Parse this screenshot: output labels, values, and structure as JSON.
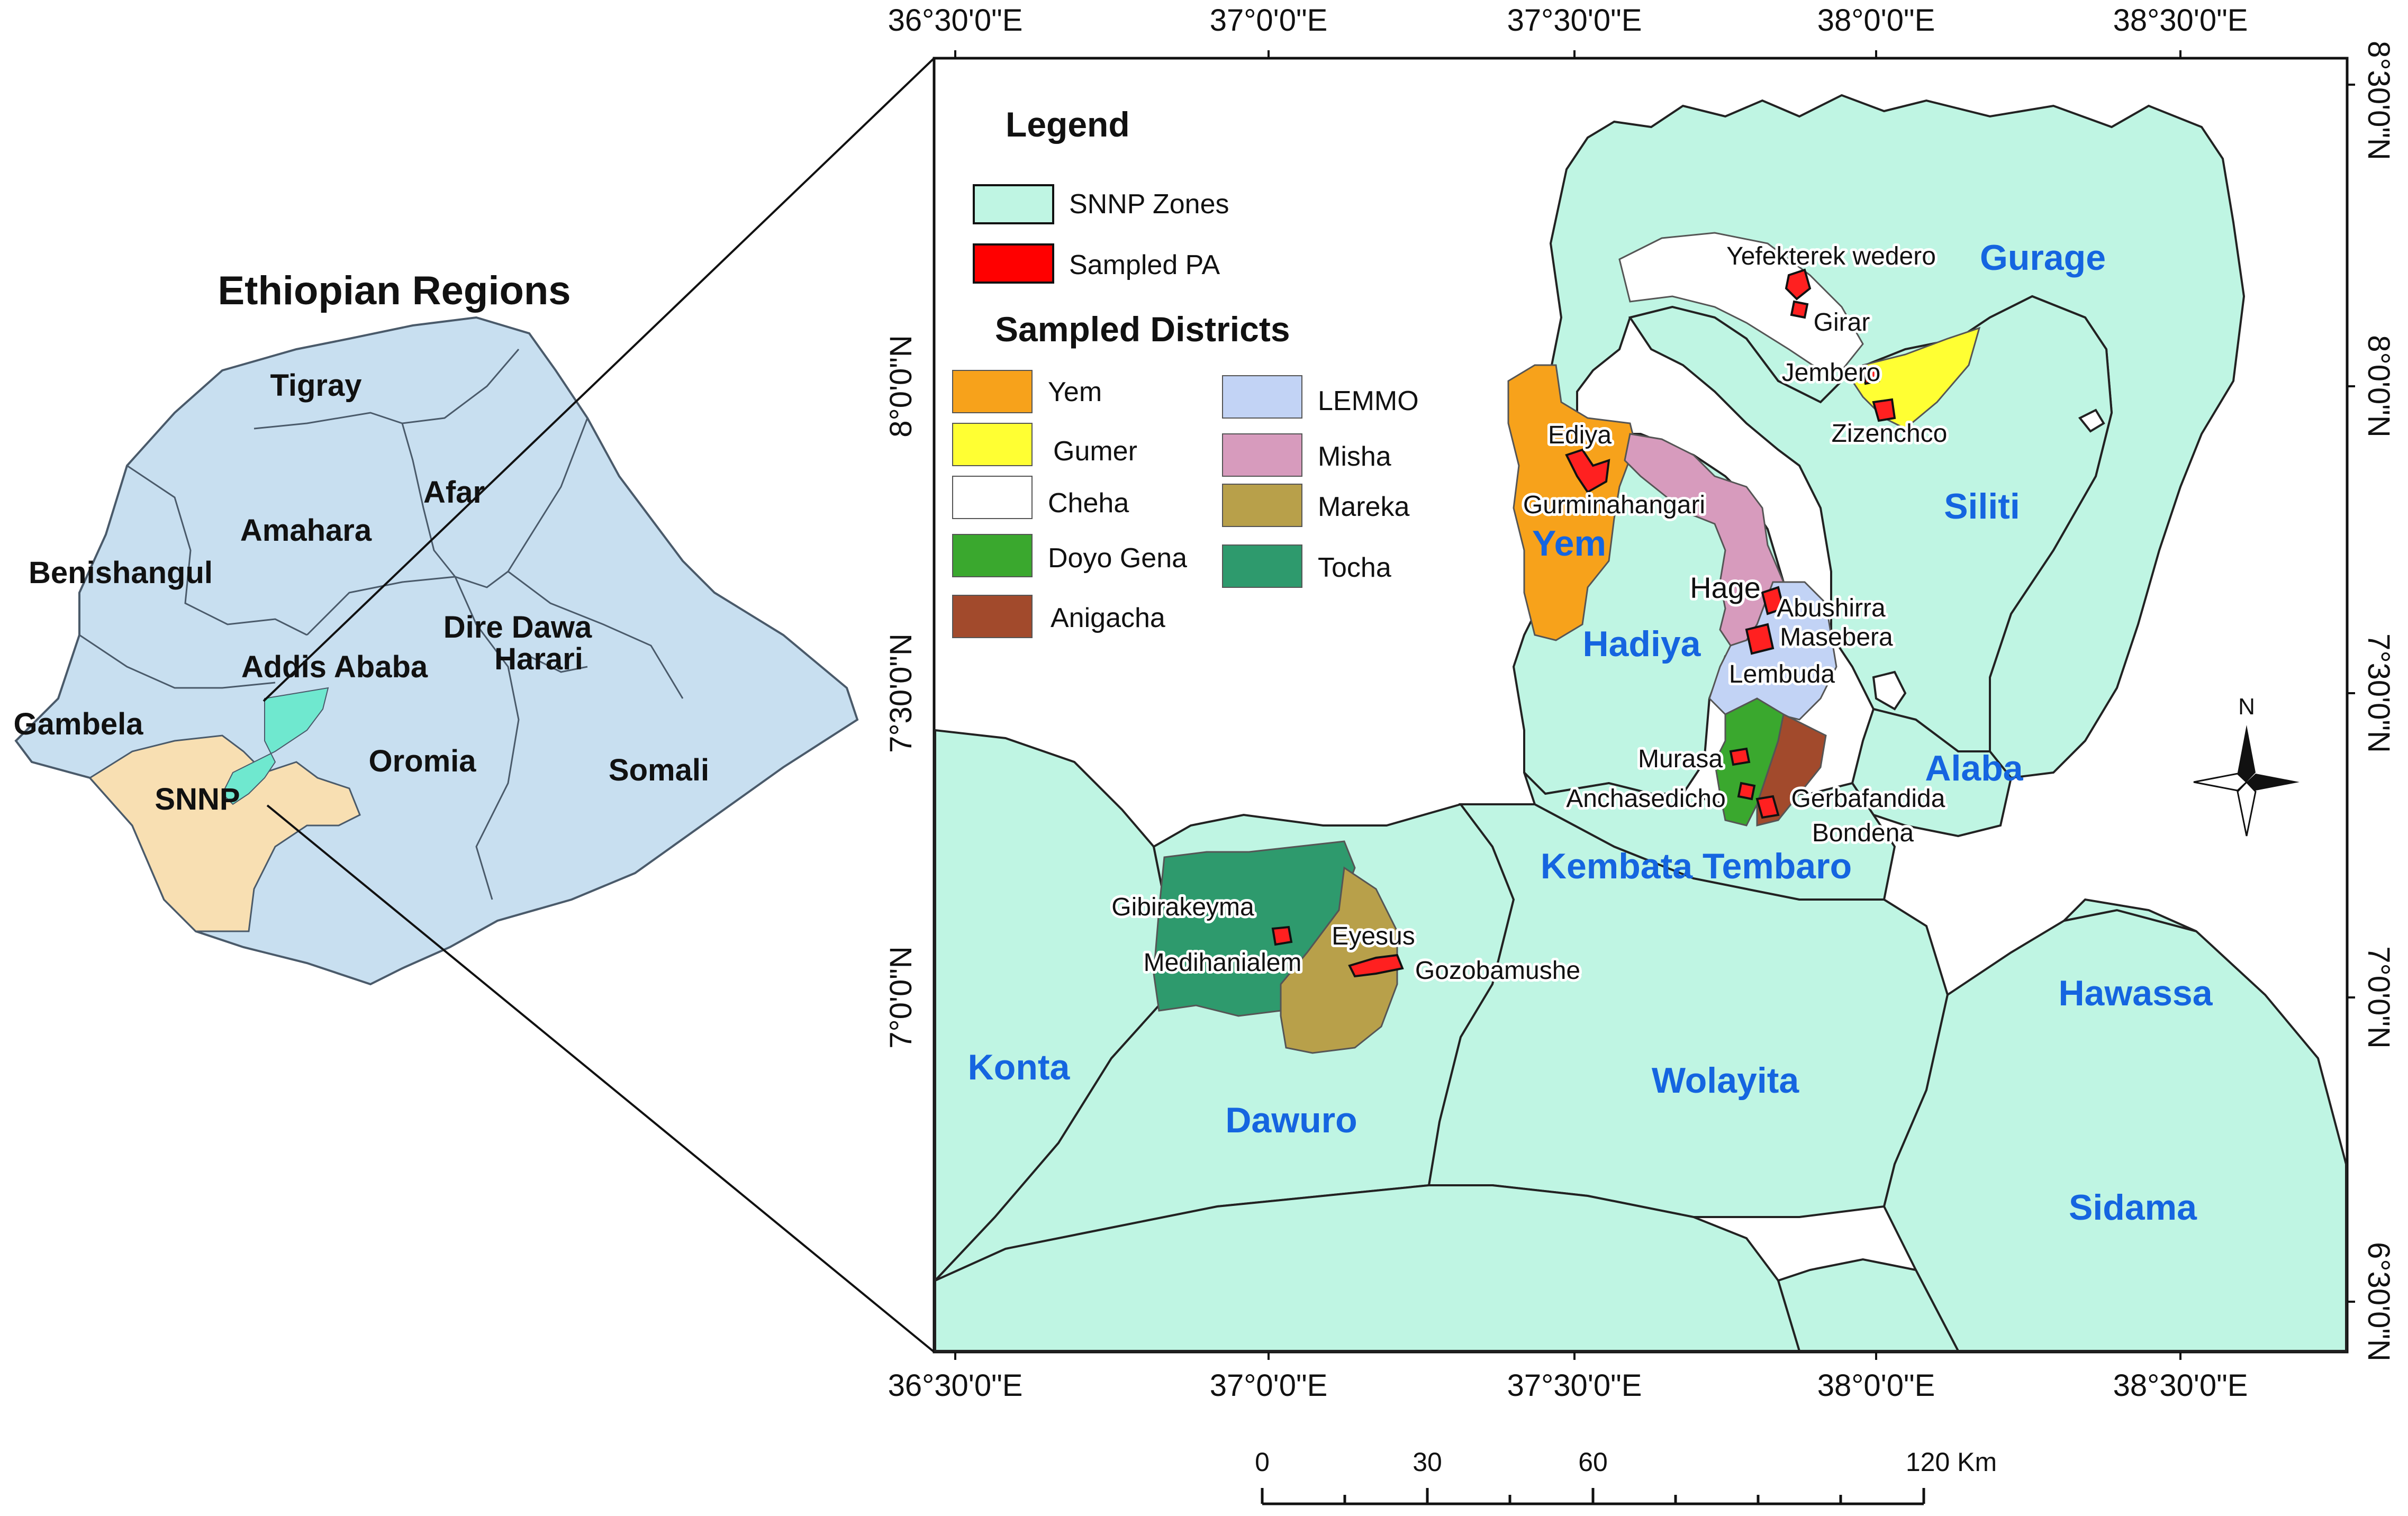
{
  "inset": {
    "title": "Ethiopian Regions",
    "regions": [
      {
        "id": "tigray",
        "name": "Tigray"
      },
      {
        "id": "afar",
        "name": "Afar"
      },
      {
        "id": "amahara",
        "name": "Amahara"
      },
      {
        "id": "benishangul",
        "name": "Benishangul"
      },
      {
        "id": "dire-dawa",
        "name": "Dire Dawa"
      },
      {
        "id": "harari",
        "name": "Harari"
      },
      {
        "id": "addis-ababa",
        "name": "Addis Ababa"
      },
      {
        "id": "gambela",
        "name": "Gambela"
      },
      {
        "id": "oromia",
        "name": "Oromia"
      },
      {
        "id": "somali",
        "name": "Somali"
      },
      {
        "id": "snnp",
        "name": "SNNP"
      }
    ]
  },
  "map": {
    "axes": {
      "top": [
        "36°30'0\"E",
        "37°0'0\"E",
        "37°30'0\"E",
        "38°0'0\"E",
        "38°30'0\"E"
      ],
      "bottom": [
        "36°30'0\"E",
        "37°0'0\"E",
        "37°30'0\"E",
        "38°0'0\"E",
        "38°30'0\"E"
      ],
      "left": [
        "8°0'0\"N",
        "7°30'0\"N",
        "7°0'0\"N"
      ],
      "right": [
        "8°30'0\"N",
        "8°0'0\"N",
        "7°30'0\"N",
        "7°0'0\"N",
        "6°30'0\"N"
      ]
    },
    "legend": {
      "title": "Legend",
      "items": [
        {
          "label": "SNNP Zones",
          "color": "#bff5e3"
        },
        {
          "label": "Sampled PA",
          "color": "#ff0000"
        }
      ],
      "districts_title": "Sampled Districts",
      "districts": [
        {
          "label": "Yem",
          "color": "#f7a21b"
        },
        {
          "label": "Gumer",
          "color": "#ffff33"
        },
        {
          "label": "Cheha",
          "color": "#ffffff"
        },
        {
          "label": "Doyo Gena",
          "color": "#3aa82e"
        },
        {
          "label": "Anigacha",
          "color": "#a24a2c"
        },
        {
          "label": "LEMMO",
          "color": "#c2d3f5"
        },
        {
          "label": "Misha",
          "color": "#d79bbd"
        },
        {
          "label": "Mareka",
          "color": "#b8a04a"
        },
        {
          "label": "Tocha",
          "color": "#2e9a6d"
        }
      ]
    },
    "zones": [
      {
        "id": "gurage",
        "name": "Gurage"
      },
      {
        "id": "siliti",
        "name": "Siliti"
      },
      {
        "id": "yem",
        "name": "Yem"
      },
      {
        "id": "hadiya",
        "name": "Hadiya"
      },
      {
        "id": "alaba",
        "name": "Alaba"
      },
      {
        "id": "kembata-tembaro",
        "name": "Kembata Tembaro"
      },
      {
        "id": "hawassa",
        "name": "Hawassa"
      },
      {
        "id": "konta",
        "name": "Konta"
      },
      {
        "id": "dawuro",
        "name": "Dawuro"
      },
      {
        "id": "wolayita",
        "name": "Wolayita"
      },
      {
        "id": "sidama",
        "name": "Sidama"
      }
    ],
    "sampled_pas": [
      {
        "id": "yefekterek-wedero",
        "name": "Yefekterek wedero"
      },
      {
        "id": "girar",
        "name": "Girar"
      },
      {
        "id": "jembero",
        "name": "Jembero"
      },
      {
        "id": "zizenchco",
        "name": "Zizenchco"
      },
      {
        "id": "ediya",
        "name": "Ediya"
      },
      {
        "id": "gurminahangari",
        "name": "Gurminahangari"
      },
      {
        "id": "hage",
        "name": "Hage"
      },
      {
        "id": "abushirra",
        "name": "Abushirra"
      },
      {
        "id": "masebera",
        "name": "Masebera"
      },
      {
        "id": "lembuda",
        "name": "Lembuda"
      },
      {
        "id": "murasa",
        "name": "Murasa"
      },
      {
        "id": "anchasedicho",
        "name": "Anchasedicho"
      },
      {
        "id": "gerbafandida",
        "name": "Gerbafandida"
      },
      {
        "id": "bondena",
        "name": "Bondena"
      },
      {
        "id": "gibirakeyma",
        "name": "Gibirakeyma"
      },
      {
        "id": "eyesus",
        "name": "Eyesus"
      },
      {
        "id": "medihanialem",
        "name": "Medihanialem"
      },
      {
        "id": "gozobamushe",
        "name": "Gozobamushe"
      }
    ],
    "north_arrow": "N",
    "scale_bar": {
      "labels": [
        "0",
        "30",
        "60",
        "120 Km"
      ],
      "values_km": [
        0,
        30,
        60,
        120
      ]
    }
  }
}
